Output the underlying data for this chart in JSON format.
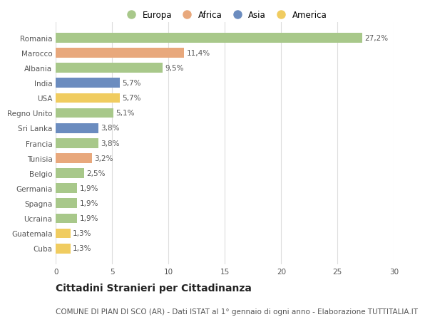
{
  "countries": [
    "Romania",
    "Marocco",
    "Albania",
    "India",
    "USA",
    "Regno Unito",
    "Sri Lanka",
    "Francia",
    "Tunisia",
    "Belgio",
    "Germania",
    "Spagna",
    "Ucraina",
    "Guatemala",
    "Cuba"
  ],
  "values": [
    27.2,
    11.4,
    9.5,
    5.7,
    5.7,
    5.1,
    3.8,
    3.8,
    3.2,
    2.5,
    1.9,
    1.9,
    1.9,
    1.3,
    1.3
  ],
  "labels": [
    "27,2%",
    "11,4%",
    "9,5%",
    "5,7%",
    "5,7%",
    "5,1%",
    "3,8%",
    "3,8%",
    "3,2%",
    "2,5%",
    "1,9%",
    "1,9%",
    "1,9%",
    "1,3%",
    "1,3%"
  ],
  "continents": [
    "Europa",
    "Africa",
    "Europa",
    "Asia",
    "America",
    "Europa",
    "Asia",
    "Europa",
    "Africa",
    "Europa",
    "Europa",
    "Europa",
    "Europa",
    "America",
    "America"
  ],
  "colors": {
    "Europa": "#a8c88a",
    "Africa": "#e8a87c",
    "Asia": "#6b8cbf",
    "America": "#f0cc60"
  },
  "legend_order": [
    "Europa",
    "Africa",
    "Asia",
    "America"
  ],
  "title": "Cittadini Stranieri per Cittadinanza",
  "subtitle": "COMUNE DI PIAN DI SCO (AR) - Dati ISTAT al 1° gennaio di ogni anno - Elaborazione TUTTITALIA.IT",
  "xlim": [
    0,
    30
  ],
  "xticks": [
    0,
    5,
    10,
    15,
    20,
    25,
    30
  ],
  "bg_color": "#ffffff",
  "grid_color": "#dddddd",
  "bar_height": 0.65,
  "title_fontsize": 10,
  "subtitle_fontsize": 7.5,
  "label_fontsize": 7.5,
  "tick_fontsize": 7.5,
  "legend_fontsize": 8.5
}
